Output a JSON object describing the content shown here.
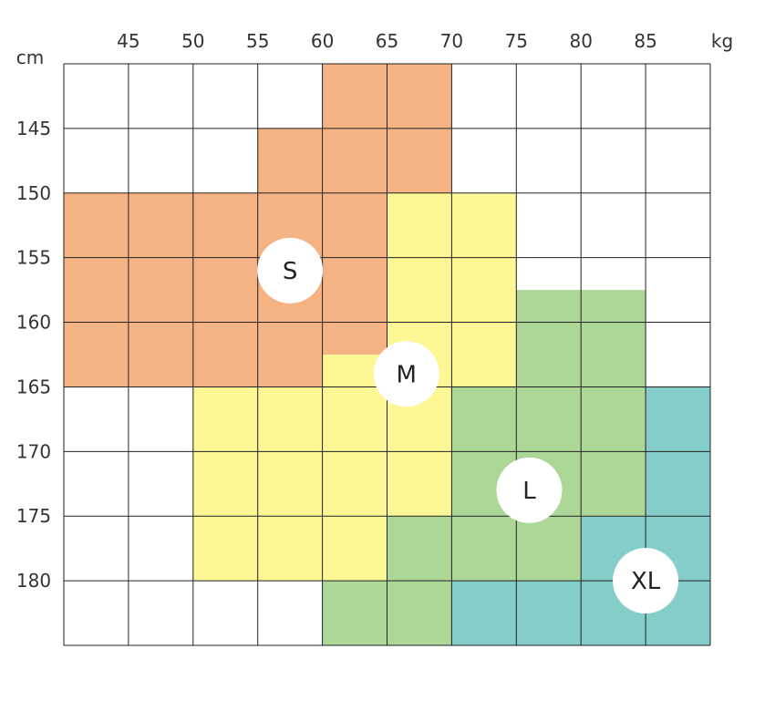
{
  "chart_data": {
    "type": "heatmap",
    "title": "",
    "x_unit": "kg",
    "y_unit": "cm",
    "x_ticks": [
      45,
      50,
      55,
      60,
      65,
      70,
      75,
      80,
      85
    ],
    "y_ticks": [
      145,
      150,
      155,
      160,
      165,
      170,
      175,
      180
    ],
    "xlim": [
      40,
      90
    ],
    "ylim": [
      140,
      185
    ],
    "grid": true,
    "colors": {
      "S": "#f5b283",
      "M": "#fdf796",
      "L": "#add797",
      "XL": "#85cdc8",
      "none": "#ffffff",
      "gridline": "#222222"
    },
    "size_labels": [
      {
        "label": "S",
        "weight": 57.5,
        "height": 156
      },
      {
        "label": "M",
        "weight": 66.5,
        "height": 164
      },
      {
        "label": "L",
        "weight": 76,
        "height": 173
      },
      {
        "label": "XL",
        "weight": 85,
        "height": 180
      }
    ],
    "regions": [
      {
        "size": "S",
        "weight_range": [
          60,
          70
        ],
        "height_range": [
          140,
          145
        ]
      },
      {
        "size": "S",
        "weight_range": [
          55,
          70
        ],
        "height_range": [
          145,
          150
        ]
      },
      {
        "size": "S",
        "weight_range": [
          40,
          65
        ],
        "height_range": [
          150,
          162.5
        ]
      },
      {
        "size": "S",
        "weight_range": [
          40,
          60
        ],
        "height_range": [
          162.5,
          165
        ]
      },
      {
        "size": "M",
        "weight_range": [
          65,
          75
        ],
        "height_range": [
          150,
          162.5
        ]
      },
      {
        "size": "M",
        "weight_range": [
          60,
          75
        ],
        "height_range": [
          162.5,
          165
        ]
      },
      {
        "size": "M",
        "weight_range": [
          50,
          70
        ],
        "height_range": [
          165,
          175
        ]
      },
      {
        "size": "M",
        "weight_range": [
          50,
          65
        ],
        "height_range": [
          175,
          180
        ]
      },
      {
        "size": "L",
        "weight_range": [
          75,
          85
        ],
        "height_range": [
          157.5,
          165
        ]
      },
      {
        "size": "L",
        "weight_range": [
          70,
          85
        ],
        "height_range": [
          165,
          175
        ]
      },
      {
        "size": "L",
        "weight_range": [
          65,
          80
        ],
        "height_range": [
          175,
          180
        ]
      },
      {
        "size": "L",
        "weight_range": [
          60,
          70
        ],
        "height_range": [
          180,
          185
        ]
      },
      {
        "size": "XL",
        "weight_range": [
          85,
          90
        ],
        "height_range": [
          165,
          175
        ]
      },
      {
        "size": "XL",
        "weight_range": [
          80,
          90
        ],
        "height_range": [
          175,
          180
        ]
      },
      {
        "size": "XL",
        "weight_range": [
          70,
          90
        ],
        "height_range": [
          180,
          185
        ]
      }
    ]
  }
}
